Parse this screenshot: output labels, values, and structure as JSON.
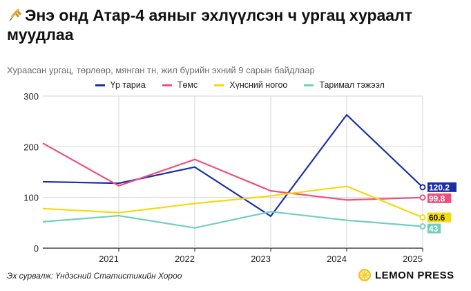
{
  "title": "Энэ онд Атар-4 аяныг эхлүүлсэн ч ургац хураалт муудлаа",
  "subtitle": "Хураасан ургац, төрлөөр, мянган тн, жил бүрийн эхний 9 сарын байдлаар",
  "source": "Эх сурвалж: Үндэсний Статистикийн Хороо",
  "brand": "LEMON PRESS",
  "icons": {
    "title": "wheat-icon",
    "brand": "lemon-icon"
  },
  "chart_data": {
    "type": "line",
    "x": [
      2020,
      2021,
      2022,
      2023,
      2024,
      2025
    ],
    "x_tick_labels": [
      "2021",
      "2022",
      "2023",
      "2024",
      "2025"
    ],
    "ylim": [
      0,
      300
    ],
    "y_ticks": [
      0,
      100,
      200,
      300
    ],
    "grid": true,
    "legend_position": "top",
    "series": [
      {
        "name": "Үр тариа",
        "color": "#1a2fa6",
        "values": [
          131,
          128,
          160,
          63,
          263,
          120.2
        ],
        "end_label": "120.2"
      },
      {
        "name": "Төмс",
        "color": "#f04f7d",
        "values": [
          207,
          123,
          175,
          113,
          95,
          99.8
        ],
        "end_label": "99.8"
      },
      {
        "name": "Хүнсний ногоо",
        "color": "#f5d90a",
        "values": [
          78,
          70,
          88,
          103,
          122,
          60.6
        ],
        "end_label": "60.6"
      },
      {
        "name": "Таримал тэжээл",
        "color": "#6fcfbd",
        "values": [
          52,
          64,
          40,
          72,
          55,
          43
        ],
        "end_label": "43"
      }
    ]
  }
}
